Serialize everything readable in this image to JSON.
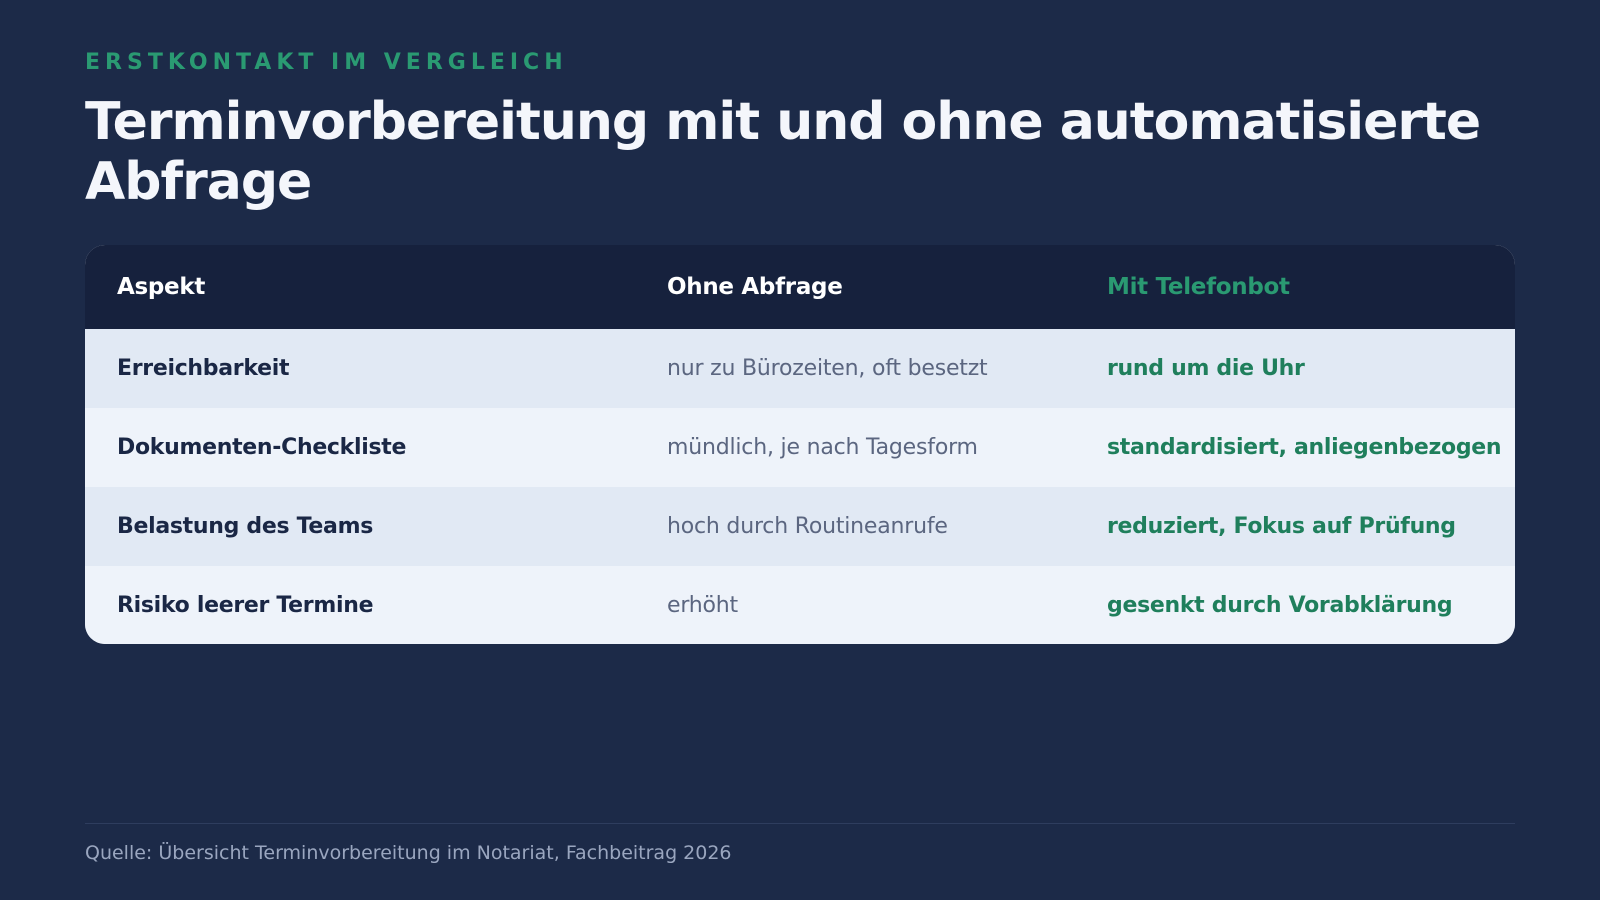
{
  "eyebrow": "ERSTKONTAKT IM VERGLEICH",
  "title": "Terminvorbereitung mit und ohne automatisierte Abfrage",
  "table": {
    "headers": [
      "Aspekt",
      "Ohne Abfrage",
      "Mit Telefonbot"
    ],
    "rows": [
      {
        "aspect": "Erreichbarkeit",
        "without": "nur zu Bürozeiten, oft besetzt",
        "with": "rund um die Uhr"
      },
      {
        "aspect": "Dokumenten-Checkliste",
        "without": "mündlich, je nach Tagesform",
        "with": "standardisiert, anliegenbezogen"
      },
      {
        "aspect": "Belastung des Teams",
        "without": "hoch durch Routineanrufe",
        "with": "reduziert, Fokus auf Prüfung"
      },
      {
        "aspect": "Risiko leerer Termine",
        "without": "erhöht",
        "with": "gesenkt durch Vorabklärung"
      }
    ]
  },
  "footer": {
    "source": "Quelle: Übersicht Terminvorbereitung im Notariat, Fachbeitrag 2026"
  },
  "colors": {
    "background": "#1c2a48",
    "accent": "#2a9a72",
    "header_row": "#16213d",
    "row_odd": "#e1e9f4",
    "row_even": "#eef3fa"
  }
}
